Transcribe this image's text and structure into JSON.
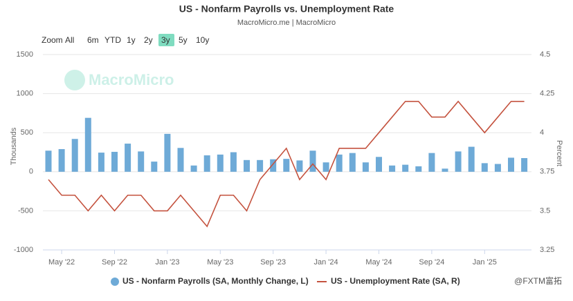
{
  "chart_data": {
    "type": "bar_line",
    "title": "US - Nonfarm Payrolls vs. Unemployment Rate",
    "subtitle": "MacroMicro.me | MacroMicro",
    "range_buttons": [
      "Zoom",
      "All",
      "6m",
      "YTD",
      "1y",
      "2y",
      "3y",
      "5y",
      "10y"
    ],
    "selected_range": "3y",
    "watermark": "MacroMicro",
    "ylabel": "Thousands",
    "y2label": "Percent",
    "categories": [
      null,
      "May '22",
      null,
      null,
      null,
      "Sep '22",
      null,
      null,
      null,
      "Jan '23",
      null,
      null,
      null,
      "May '23",
      null,
      null,
      null,
      "Sep '23",
      null,
      null,
      null,
      "Jan '24",
      null,
      null,
      null,
      "May '24",
      null,
      null,
      null,
      "Sep '24",
      null,
      null,
      null,
      "Jan '25",
      null,
      null,
      null
    ],
    "series": [
      {
        "name": "US - Nonfarm Payrolls (SA, Monthly Change, L)",
        "color": "#6eaad7",
        "kind": "bar",
        "values": [
          270,
          290,
          420,
          690,
          245,
          255,
          360,
          260,
          130,
          485,
          305,
          80,
          210,
          220,
          250,
          150,
          150,
          160,
          165,
          145,
          270,
          120,
          220,
          240,
          120,
          190,
          80,
          90,
          70,
          240,
          40,
          260,
          320,
          110,
          100,
          180,
          175
        ]
      },
      {
        "name": "US - Unemployment Rate (SA, R)",
        "color": "#c4523e",
        "kind": "line",
        "axis": "y2",
        "values": [
          3.7,
          3.6,
          3.6,
          3.5,
          3.6,
          3.5,
          3.6,
          3.6,
          3.5,
          3.5,
          3.6,
          3.5,
          3.4,
          3.6,
          3.6,
          3.5,
          3.7,
          3.8,
          3.9,
          3.7,
          3.8,
          3.7,
          3.9,
          3.9,
          3.9,
          4.0,
          4.1,
          4.2,
          4.2,
          4.1,
          4.1,
          4.2,
          4.1,
          4.0,
          4.1,
          4.2,
          4.2
        ]
      }
    ],
    "ylim": [
      -1000,
      1500
    ],
    "yticks": [
      -1000,
      -500,
      0,
      500,
      1000,
      1500
    ],
    "y2lim": [
      3.25,
      4.5
    ],
    "y2ticks": [
      3.25,
      3.5,
      3.75,
      4,
      4.25,
      4.5
    ],
    "grid": true,
    "legend": "bottom"
  },
  "footer": "@FXTM富拓"
}
